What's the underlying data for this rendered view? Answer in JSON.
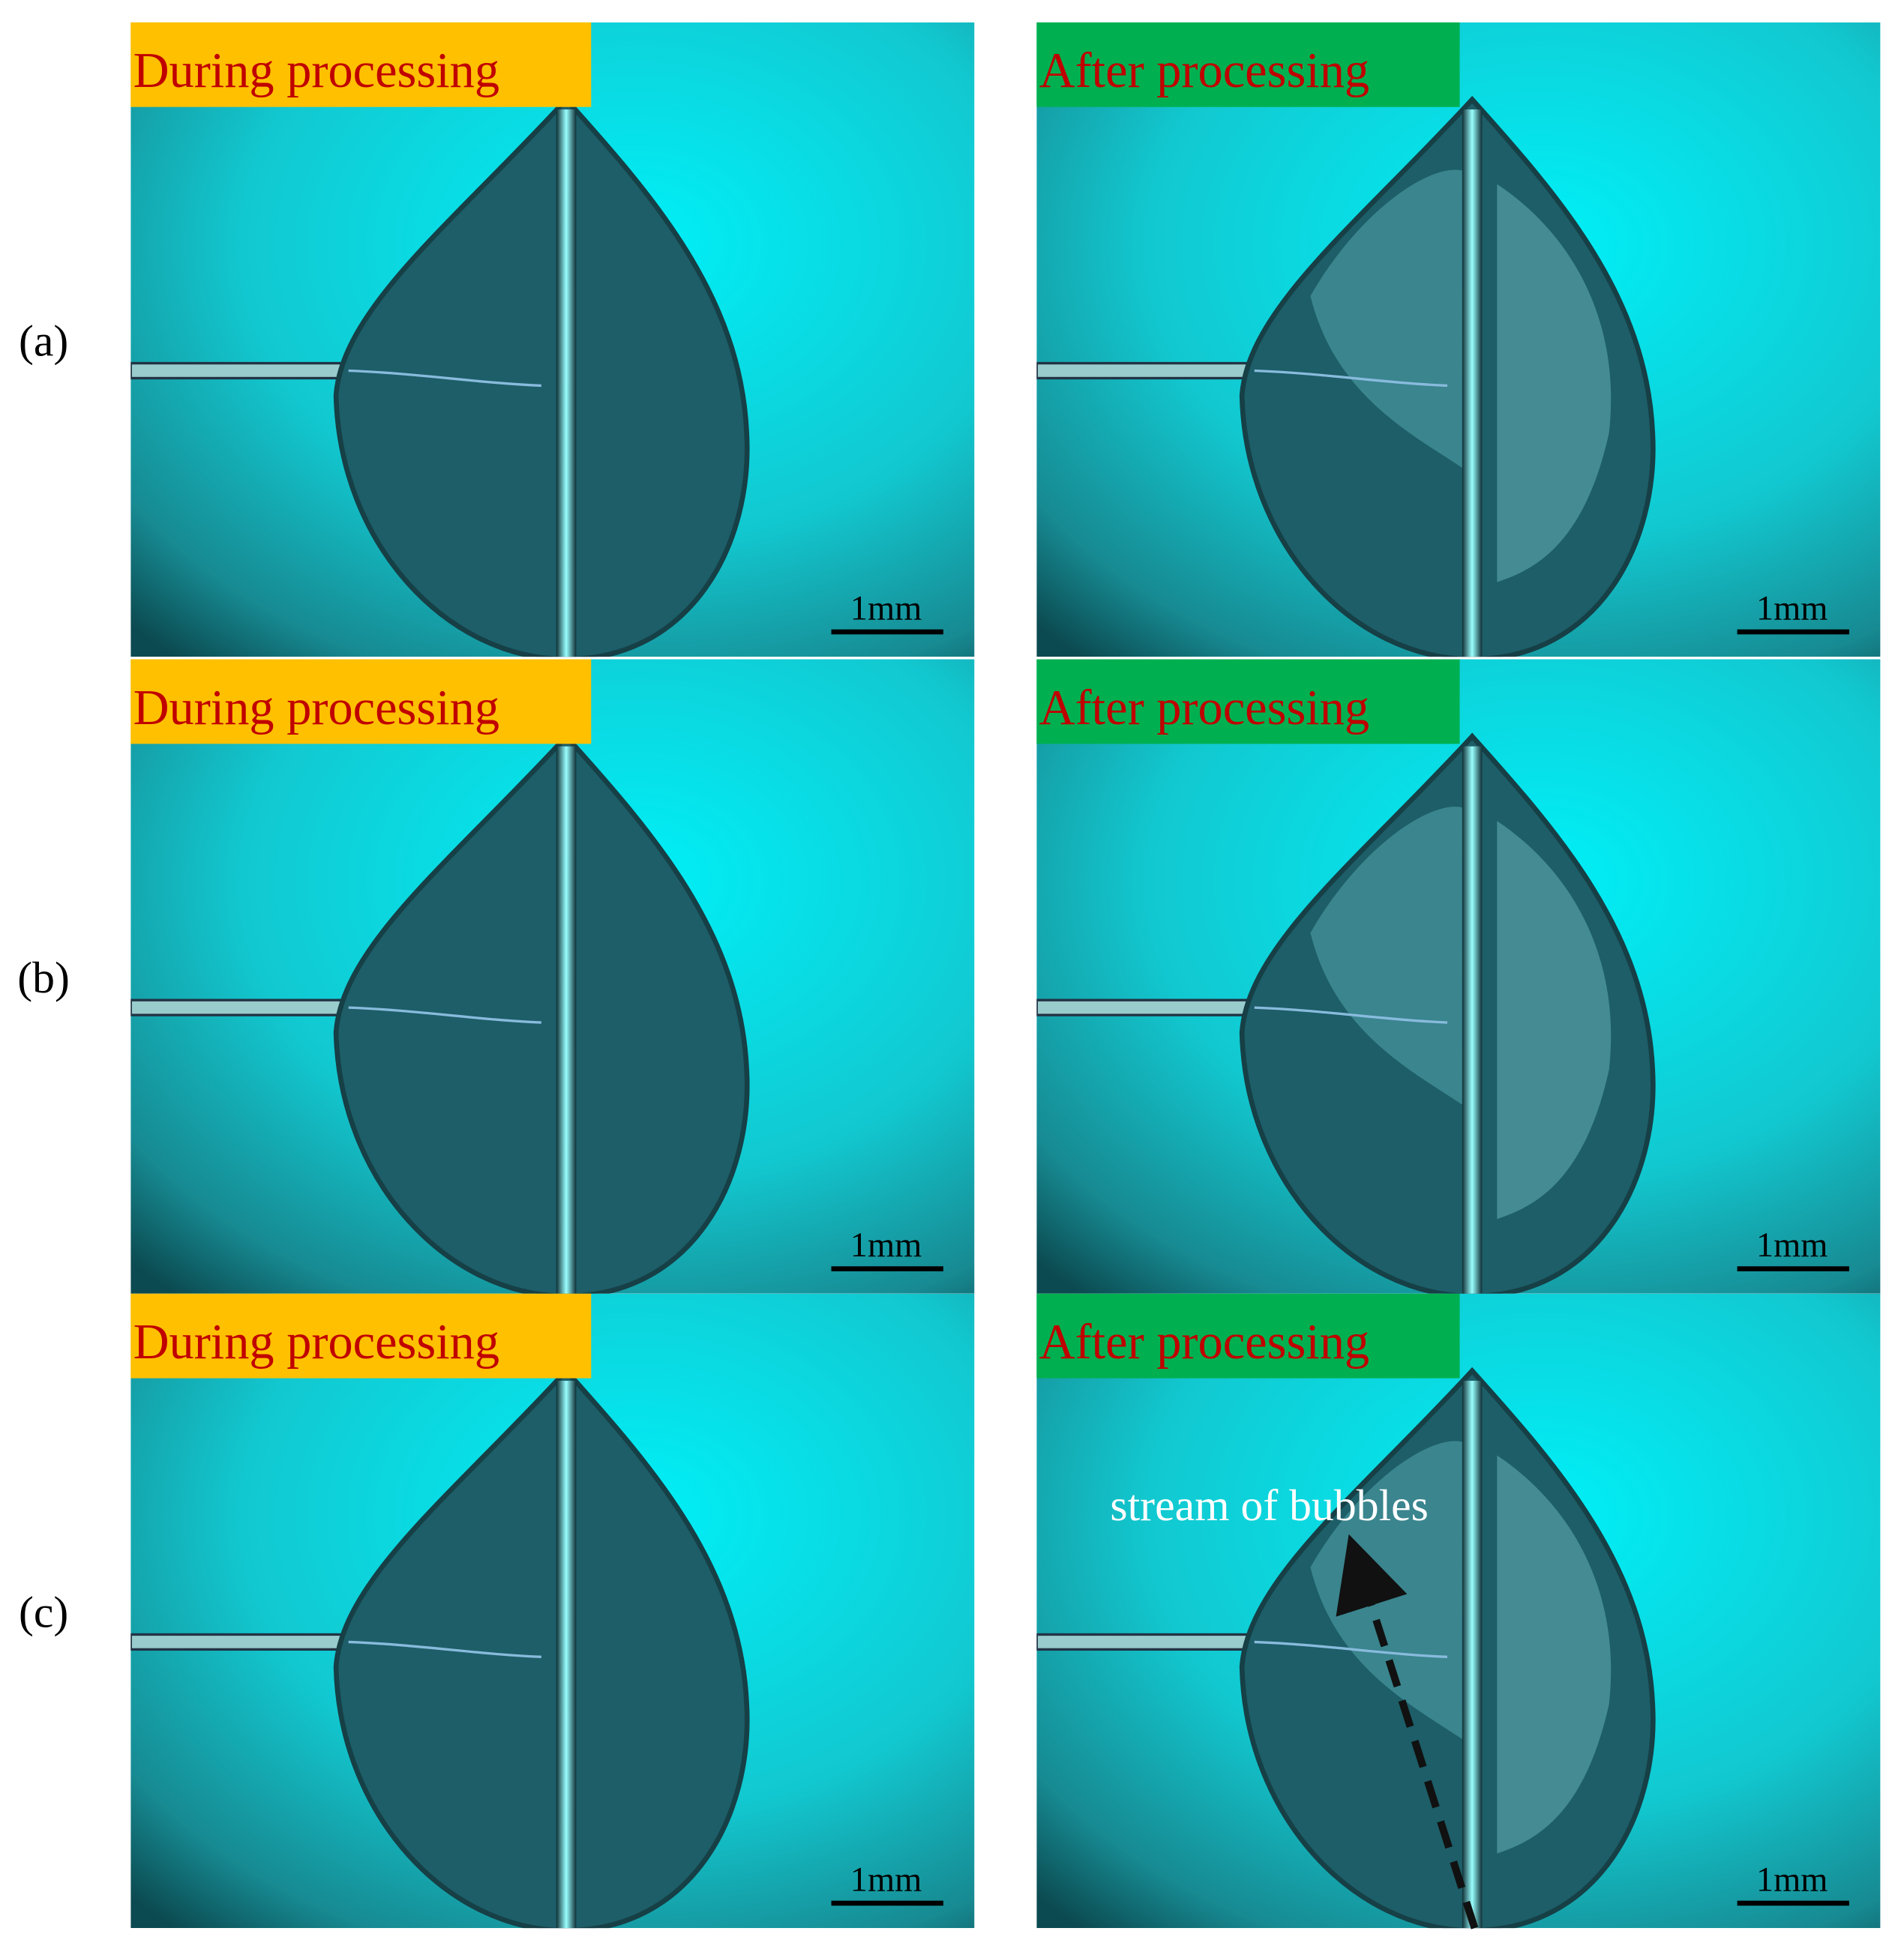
{
  "rows": [
    {
      "label": "(a)",
      "panels": [
        {
          "tag": "During processing",
          "scale_bar": "1mm"
        },
        {
          "tag": "After processing",
          "scale_bar": "1mm"
        }
      ]
    },
    {
      "label": "(b)",
      "panels": [
        {
          "tag": "During processing",
          "scale_bar": "1mm"
        },
        {
          "tag": "After processing",
          "scale_bar": "1mm"
        }
      ]
    },
    {
      "label": "(c)",
      "panels": [
        {
          "tag": "During processing",
          "scale_bar": "1mm"
        },
        {
          "tag": "After processing",
          "scale_bar": "1mm"
        }
      ]
    }
  ],
  "annotation": "stream of bubbles"
}
